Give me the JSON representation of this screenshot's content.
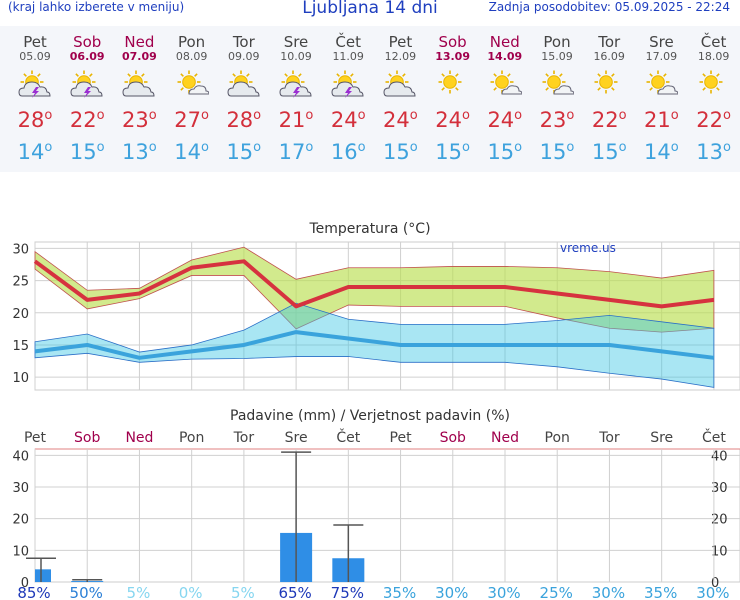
{
  "header": {
    "left_note": "(kraj lahko izberete v meniju)",
    "title": "Ljubljana 14 dni",
    "updated": "Zadnja posodobitev: 05.09.2025 - 22:24"
  },
  "days": [
    {
      "name": "Pet",
      "date": "05.09",
      "weekend": false,
      "icon": "sun-cloud-lightning-icon",
      "tmax": "28",
      "tmin": "14"
    },
    {
      "name": "Sob",
      "date": "06.09",
      "weekend": true,
      "icon": "sun-cloud-lightning-icon",
      "tmax": "22",
      "tmin": "15"
    },
    {
      "name": "Ned",
      "date": "07.09",
      "weekend": true,
      "icon": "sun-cloud-icon",
      "tmax": "23",
      "tmin": "13"
    },
    {
      "name": "Pon",
      "date": "08.09",
      "weekend": false,
      "icon": "sun-small-cloud-icon",
      "tmax": "27",
      "tmin": "14"
    },
    {
      "name": "Tor",
      "date": "09.09",
      "weekend": false,
      "icon": "sun-cloud-icon",
      "tmax": "28",
      "tmin": "15"
    },
    {
      "name": "Sre",
      "date": "10.09",
      "weekend": false,
      "icon": "sun-cloud-lightning-icon",
      "tmax": "21",
      "tmin": "17"
    },
    {
      "name": "Čet",
      "date": "11.09",
      "weekend": false,
      "icon": "sun-cloud-lightning-icon",
      "tmax": "24",
      "tmin": "16"
    },
    {
      "name": "Pet",
      "date": "12.09",
      "weekend": false,
      "icon": "sun-cloud-icon",
      "tmax": "24",
      "tmin": "15"
    },
    {
      "name": "Sob",
      "date": "13.09",
      "weekend": true,
      "icon": "sun-icon",
      "tmax": "24",
      "tmin": "15"
    },
    {
      "name": "Ned",
      "date": "14.09",
      "weekend": true,
      "icon": "sun-small-cloud-icon",
      "tmax": "24",
      "tmin": "15"
    },
    {
      "name": "Pon",
      "date": "15.09",
      "weekend": false,
      "icon": "sun-small-cloud-icon",
      "tmax": "23",
      "tmin": "15"
    },
    {
      "name": "Tor",
      "date": "16.09",
      "weekend": false,
      "icon": "sun-icon",
      "tmax": "22",
      "tmin": "15"
    },
    {
      "name": "Sre",
      "date": "17.09",
      "weekend": false,
      "icon": "sun-small-cloud-icon",
      "tmax": "21",
      "tmin": "14"
    },
    {
      "name": "Čet",
      "date": "18.09",
      "weekend": false,
      "icon": "sun-icon",
      "tmax": "22",
      "tmin": "13"
    }
  ],
  "chart_data": [
    {
      "type": "line",
      "title": "Temperatura (°C)",
      "watermark": "vreme.us",
      "categories": [
        "Pet",
        "Sob",
        "Ned",
        "Pon",
        "Tor",
        "Sre",
        "Čet",
        "Pet",
        "Sob",
        "Ned",
        "Pon",
        "Tor",
        "Sre",
        "Čet"
      ],
      "ylim": [
        8,
        31
      ],
      "yticks": [
        10,
        15,
        20,
        25,
        30
      ],
      "grid": true,
      "series": [
        {
          "key": "max",
          "values": [
            28,
            22,
            23,
            27,
            28,
            21,
            24,
            24,
            24,
            24,
            23,
            22,
            21,
            22
          ],
          "band_upper": [
            29.5,
            23.5,
            23.8,
            28.2,
            30.2,
            25.2,
            27.0,
            27.0,
            27.2,
            27.2,
            27.0,
            26.4,
            25.4,
            26.6
          ],
          "band_lower": [
            26.8,
            20.6,
            22.2,
            25.8,
            25.8,
            17.5,
            21.2,
            21.0,
            21.0,
            21.0,
            19.2,
            17.6,
            17.0,
            17.6
          ],
          "color": "#d6323f"
        },
        {
          "key": "min",
          "values": [
            14,
            15,
            13,
            14,
            15,
            17,
            16,
            15,
            15,
            15,
            15,
            15,
            14,
            13
          ],
          "band_upper": [
            15.5,
            16.7,
            13.9,
            15.0,
            17.3,
            21.5,
            19.0,
            18.2,
            18.2,
            18.2,
            18.8,
            19.6,
            18.6,
            17.6
          ],
          "band_lower": [
            13.0,
            13.7,
            12.3,
            12.8,
            12.9,
            13.2,
            13.2,
            12.3,
            12.3,
            12.3,
            11.6,
            10.6,
            9.7,
            8.4
          ],
          "color": "#3aa3dc"
        }
      ]
    },
    {
      "type": "bar",
      "title": "Padavine (mm) / Verjetnost padavin (%)",
      "categories": [
        "Pet",
        "Sob",
        "Ned",
        "Pon",
        "Tor",
        "Sre",
        "Čet",
        "Pet",
        "Sob",
        "Ned",
        "Pon",
        "Tor",
        "Sre",
        "Čet"
      ],
      "ylim": [
        0,
        42
      ],
      "yticks": [
        0,
        10,
        20,
        30,
        40
      ],
      "grid": true,
      "values": [
        4,
        0.3,
        0,
        0,
        0,
        15.5,
        7.5,
        0,
        0,
        0,
        0,
        0,
        0,
        0
      ],
      "error_high": [
        7.5,
        0.7,
        0,
        0,
        0,
        41,
        18,
        0,
        0,
        0,
        0,
        0,
        0,
        0
      ],
      "probability_labels": [
        "85%",
        "50%",
        "5%",
        "0%",
        "5%",
        "65%",
        "75%",
        "35%",
        "30%",
        "30%",
        "25%",
        "30%",
        "35%",
        "30%"
      ],
      "probability_colors": [
        "#1d38b8",
        "#2a7fd6",
        "#86d6f0",
        "#86d6f0",
        "#86d6f0",
        "#1d38b8",
        "#1d38b8",
        "#3aa3dc",
        "#3aa3dc",
        "#3aa3dc",
        "#3aa3dc",
        "#3aa3dc",
        "#3aa3dc",
        "#3aa3dc"
      ],
      "bar_color": "#2f8ee6"
    }
  ]
}
